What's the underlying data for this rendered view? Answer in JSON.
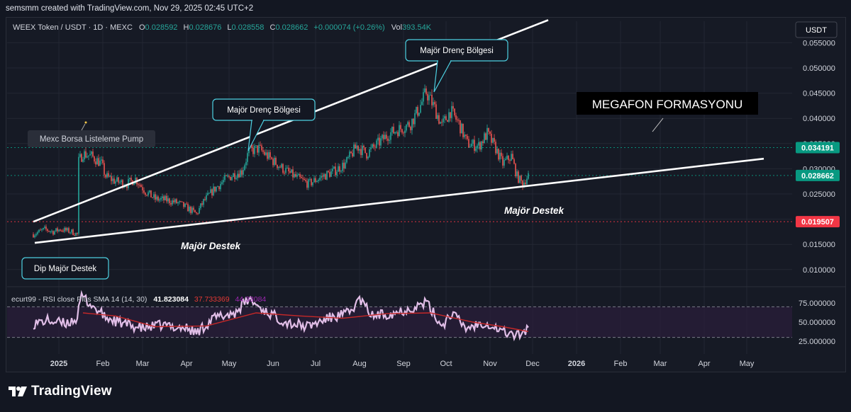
{
  "header": {
    "credit": "semsmm created with TradingView.com, Nov 29, 2025 02:45 UTC+2"
  },
  "symbol_line": {
    "name": "WEEX Token / USDT · 1D · MEXC",
    "o_label": "O",
    "o": "0.028592",
    "h_label": "H",
    "h": "0.028676",
    "l_label": "L",
    "l": "0.028558",
    "c_label": "C",
    "c": "0.028662",
    "change": "+0.000074 (+0.26%)",
    "vol_label": "Vol",
    "vol": "393.54K"
  },
  "currency_button": "USDT",
  "colors": {
    "up": "#26a69a",
    "down": "#ef5350",
    "background": "#161a25",
    "grid": "#232733",
    "lines": "#ffffff",
    "rsi": "#e1bee7",
    "rsi_sma": "#c62828",
    "rsi_band": "#2a1e3a",
    "tag_last": "#089981",
    "tag_red": "#f23645"
  },
  "annotations": {
    "megafon": "MEGAFON FORMASYONU",
    "res1": "Majör Drenç Bölgesi",
    "res2": "Majör Drenç Bölgesi",
    "mexc": "Mexc Borsa Listeleme Pump",
    "dip": "Dip Majör Destek",
    "sup1": "Majör Destek",
    "sup2": "Majör Destek"
  },
  "price_tags": {
    "upper": "0.034191",
    "last": "0.028662",
    "lower": "0.019507"
  },
  "rsi": {
    "title": "ecurt99 - RSI close Plus SMA 14 (14, 30)",
    "v1": "41.823084",
    "v2": "37.733369",
    "v3": "44.33084"
  },
  "footer": {
    "brand": "TradingView"
  },
  "chart_data": {
    "type": "candlestick",
    "y_axis": {
      "ticks": [
        "0.055000",
        "0.050000",
        "0.045000",
        "0.040000",
        "0.035000",
        "0.030000",
        "0.025000",
        "0.020000",
        "0.015000",
        "0.010000"
      ],
      "ylim": [
        0.0055,
        0.0585
      ]
    },
    "rsi_axis": {
      "ticks": [
        "75.000000",
        "50.000000",
        "25.000000"
      ],
      "ylim": [
        20,
        92
      ]
    },
    "x_ticks": [
      "2025",
      "Feb",
      "Mar",
      "Apr",
      "May",
      "Jun",
      "Jul",
      "Aug",
      "Sep",
      "Oct",
      "Nov",
      "Dec",
      "2026",
      "Feb",
      "Mar",
      "Apr",
      "May"
    ],
    "x_tick_dates": [
      "2025-01-01",
      "2025-02-01",
      "2025-03-01",
      "2025-04-01",
      "2025-05-01",
      "2025-06-01",
      "2025-07-01",
      "2025-08-01",
      "2025-09-01",
      "2025-10-01",
      "2025-11-01",
      "2025-12-01",
      "2026-01-01",
      "2026-02-01",
      "2026-03-01",
      "2026-04-01",
      "2026-05-01"
    ],
    "trend_lines": [
      {
        "name": "resistance",
        "p1": [
          "2024-12-14",
          0.0195
        ],
        "p2": [
          "2025-12-12",
          0.0595
        ]
      },
      {
        "name": "support",
        "p1": [
          "2024-12-15",
          0.0153
        ],
        "p2": [
          "2026-05-13",
          0.032
        ]
      }
    ],
    "horizontal_levels": [
      0.034191,
      0.028662,
      0.019507
    ],
    "rsi_bands": [
      70,
      30
    ],
    "price_path": [
      [
        "2024-12-14",
        0.017
      ],
      [
        "2024-12-22",
        0.018
      ],
      [
        "2024-12-28",
        0.0175
      ],
      [
        "2025-01-02",
        0.018
      ],
      [
        "2025-01-10",
        0.0175
      ],
      [
        "2025-01-14",
        0.017
      ],
      [
        "2025-01-15",
        0.0315
      ],
      [
        "2025-01-18",
        0.033
      ],
      [
        "2025-01-24",
        0.0325
      ],
      [
        "2025-01-31",
        0.031
      ],
      [
        "2025-02-03",
        0.0285
      ],
      [
        "2025-02-10",
        0.0275
      ],
      [
        "2025-02-18",
        0.027
      ],
      [
        "2025-02-24",
        0.028
      ],
      [
        "2025-03-03",
        0.0255
      ],
      [
        "2025-03-10",
        0.024
      ],
      [
        "2025-03-18",
        0.0238
      ],
      [
        "2025-03-26",
        0.0232
      ],
      [
        "2025-04-03",
        0.022
      ],
      [
        "2025-04-08",
        0.021
      ],
      [
        "2025-04-13",
        0.0235
      ],
      [
        "2025-04-20",
        0.0258
      ],
      [
        "2025-04-28",
        0.0278
      ],
      [
        "2025-05-05",
        0.029
      ],
      [
        "2025-05-10",
        0.0295
      ],
      [
        "2025-05-15",
        0.0335
      ],
      [
        "2025-05-22",
        0.034
      ],
      [
        "2025-05-31",
        0.0318
      ],
      [
        "2025-06-08",
        0.03
      ],
      [
        "2025-06-16",
        0.0285
      ],
      [
        "2025-06-26",
        0.027
      ],
      [
        "2025-07-06",
        0.0285
      ],
      [
        "2025-07-14",
        0.0295
      ],
      [
        "2025-07-22",
        0.031
      ],
      [
        "2025-07-30",
        0.0345
      ],
      [
        "2025-08-06",
        0.033
      ],
      [
        "2025-08-14",
        0.035
      ],
      [
        "2025-08-22",
        0.037
      ],
      [
        "2025-08-30",
        0.038
      ],
      [
        "2025-09-06",
        0.039
      ],
      [
        "2025-09-12",
        0.042
      ],
      [
        "2025-09-17",
        0.0452
      ],
      [
        "2025-09-23",
        0.042
      ],
      [
        "2025-09-28",
        0.0385
      ],
      [
        "2025-10-04",
        0.0415
      ],
      [
        "2025-10-10",
        0.039
      ],
      [
        "2025-10-16",
        0.035
      ],
      [
        "2025-10-24",
        0.0345
      ],
      [
        "2025-10-30",
        0.037
      ],
      [
        "2025-11-05",
        0.034
      ],
      [
        "2025-11-10",
        0.031
      ],
      [
        "2025-11-16",
        0.0325
      ],
      [
        "2025-11-20",
        0.0285
      ],
      [
        "2025-11-24",
        0.027
      ],
      [
        "2025-11-28",
        0.0287
      ]
    ],
    "rsi_path": [
      [
        "2024-12-14",
        48
      ],
      [
        "2024-12-24",
        52
      ],
      [
        "2025-01-05",
        48
      ],
      [
        "2025-01-14",
        55
      ],
      [
        "2025-01-17",
        85
      ],
      [
        "2025-01-24",
        72
      ],
      [
        "2025-02-03",
        56
      ],
      [
        "2025-02-15",
        48
      ],
      [
        "2025-03-01",
        42
      ],
      [
        "2025-03-15",
        46
      ],
      [
        "2025-04-01",
        42
      ],
      [
        "2025-04-08",
        36
      ],
      [
        "2025-04-20",
        55
      ],
      [
        "2025-05-05",
        62
      ],
      [
        "2025-05-15",
        80
      ],
      [
        "2025-05-25",
        66
      ],
      [
        "2025-06-10",
        50
      ],
      [
        "2025-06-25",
        44
      ],
      [
        "2025-07-10",
        55
      ],
      [
        "2025-07-25",
        62
      ],
      [
        "2025-08-01",
        80
      ],
      [
        "2025-08-10",
        58
      ],
      [
        "2025-08-25",
        62
      ],
      [
        "2025-09-10",
        70
      ],
      [
        "2025-09-17",
        76
      ],
      [
        "2025-09-28",
        45
      ],
      [
        "2025-10-05",
        62
      ],
      [
        "2025-10-15",
        42
      ],
      [
        "2025-10-28",
        50
      ],
      [
        "2025-11-10",
        38
      ],
      [
        "2025-11-20",
        32
      ],
      [
        "2025-11-28",
        41.8
      ]
    ],
    "rsi_sma_path": [
      [
        "2025-01-18",
        62
      ],
      [
        "2025-02-10",
        58
      ],
      [
        "2025-03-10",
        44
      ],
      [
        "2025-04-15",
        45
      ],
      [
        "2025-05-20",
        62
      ],
      [
        "2025-06-20",
        58
      ],
      [
        "2025-07-20",
        55
      ],
      [
        "2025-08-20",
        61
      ],
      [
        "2025-09-20",
        62
      ],
      [
        "2025-10-20",
        50
      ],
      [
        "2025-11-10",
        44
      ],
      [
        "2025-11-28",
        37.7
      ]
    ]
  }
}
